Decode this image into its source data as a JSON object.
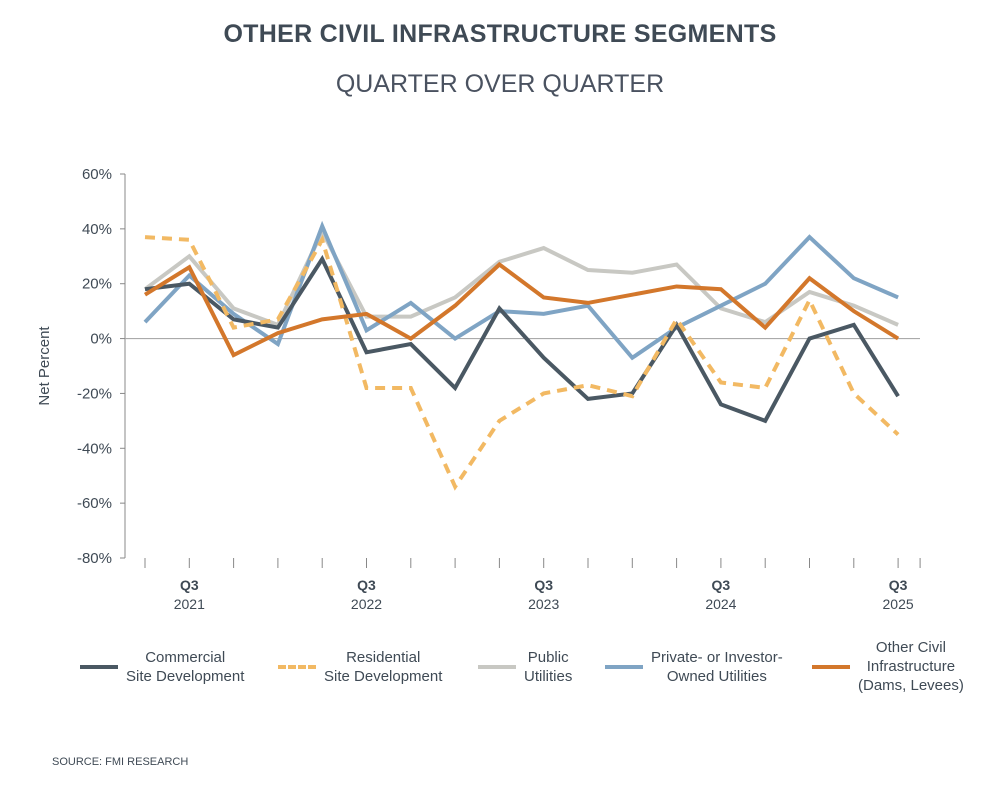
{
  "chart_data": {
    "type": "line",
    "title": "OTHER CIVIL INFRASTRUCTURE SEGMENTS",
    "subtitle": "QUARTER OVER QUARTER",
    "ylabel": "Net Percent",
    "xlabel": "",
    "ylim": [
      -80,
      60
    ],
    "yticks": [
      "60%",
      "40%",
      "20%",
      "0%",
      "-20%",
      "-40%",
      "-60%",
      "-80%"
    ],
    "ytick_values": [
      60,
      40,
      20,
      0,
      -20,
      -40,
      -60,
      -80
    ],
    "x": [
      "Q2 2021",
      "Q3 2021",
      "Q4 2021",
      "Q1 2022",
      "Q2 2022",
      "Q3 2022",
      "Q4 2022",
      "Q1 2023",
      "Q2 2023",
      "Q3 2023",
      "Q4 2023",
      "Q1 2024",
      "Q2 2024",
      "Q3 2024",
      "Q4 2024",
      "Q1 2025",
      "Q2 2025",
      "Q3 2025"
    ],
    "xtick_labels": [
      {
        "index": 1,
        "q": "Q3",
        "year": "2021"
      },
      {
        "index": 5,
        "q": "Q3",
        "year": "2022"
      },
      {
        "index": 9,
        "q": "Q3",
        "year": "2023"
      },
      {
        "index": 13,
        "q": "Q3",
        "year": "2024"
      },
      {
        "index": 17,
        "q": "Q3",
        "year": "2025"
      }
    ],
    "legend_position": "bottom",
    "grid": false,
    "series": [
      {
        "name": "Commercial\nSite Development",
        "color": "#4a5863",
        "dashed": false,
        "values": [
          18,
          20,
          7,
          4,
          29,
          -5,
          -2,
          -18,
          11,
          -7,
          -22,
          -20,
          5,
          -24,
          -30,
          0,
          5,
          -21
        ]
      },
      {
        "name": "Residential\nSite Development",
        "color": "#f2b963",
        "dashed": true,
        "values": [
          37,
          36,
          4,
          7,
          36,
          -18,
          -18,
          -54,
          -30,
          -20,
          -17,
          -21,
          7,
          -16,
          -18,
          14,
          -20,
          -35
        ]
      },
      {
        "name": "Public\nUtilities",
        "color": "#c8c8c3",
        "dashed": false,
        "values": [
          18,
          30,
          11,
          5,
          39,
          8,
          8,
          15,
          28,
          33,
          25,
          24,
          27,
          11,
          6,
          17,
          12,
          5
        ]
      },
      {
        "name": "Private- or Investor-\nOwned Utilities",
        "color": "#7fa4c4",
        "dashed": false,
        "values": [
          6,
          23,
          9,
          -2,
          41,
          3,
          13,
          0,
          10,
          9,
          12,
          -7,
          4,
          12,
          20,
          37,
          22,
          15
        ]
      },
      {
        "name": "Other Civil\nInfrastructure\n(Dams, Levees)",
        "color": "#d3772b",
        "dashed": false,
        "values": [
          16,
          26,
          -6,
          2,
          7,
          9,
          0,
          12,
          27,
          15,
          13,
          16,
          19,
          18,
          4,
          22,
          10,
          0
        ]
      }
    ]
  },
  "source": "SOURCE: FMI RESEARCH"
}
